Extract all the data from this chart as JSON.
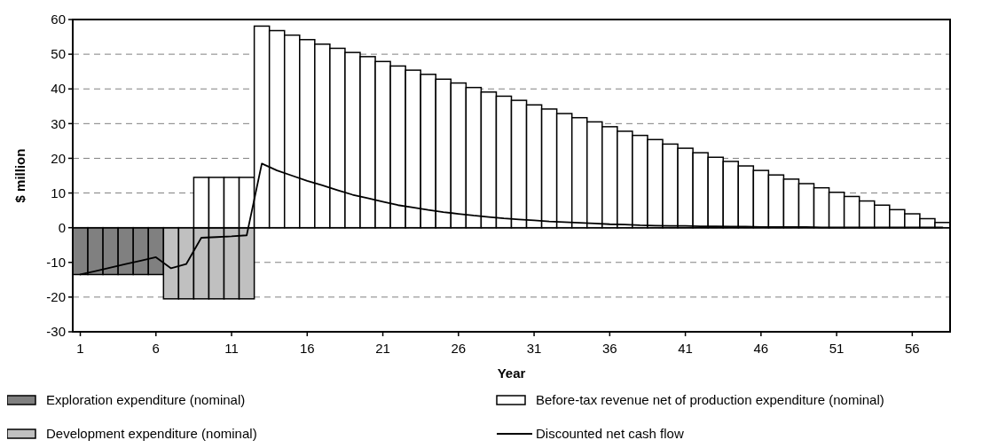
{
  "chart_data": {
    "type": "bar",
    "xlabel": "Year",
    "ylabel": "$ million",
    "ylim": [
      -30,
      60
    ],
    "yticks": [
      -30,
      -20,
      -10,
      0,
      10,
      20,
      30,
      40,
      50,
      60
    ],
    "grid": "y",
    "legend": "bottom",
    "x": [
      1,
      2,
      3,
      4,
      5,
      6,
      7,
      8,
      9,
      10,
      11,
      12,
      13,
      14,
      15,
      16,
      17,
      18,
      19,
      20,
      21,
      22,
      23,
      24,
      25,
      26,
      27,
      28,
      29,
      30,
      31,
      32,
      33,
      34,
      35,
      36,
      37,
      38,
      39,
      40,
      41,
      42,
      43,
      44,
      45,
      46,
      47,
      48,
      49,
      50,
      51,
      52,
      53,
      54,
      55,
      56,
      57,
      58
    ],
    "xlim": [
      0.5,
      58.5
    ],
    "xticks": [
      1,
      6,
      11,
      16,
      21,
      26,
      31,
      36,
      41,
      46,
      51,
      56
    ],
    "series": [
      {
        "name": "Exploration expenditure (nominal)",
        "color": "#808080",
        "values": [
          -13.5,
          -13.5,
          -13.5,
          -13.5,
          -13.5,
          -13.5,
          null,
          null,
          null,
          null,
          null,
          null,
          null,
          null,
          null,
          null,
          null,
          null,
          null,
          null,
          null,
          null,
          null,
          null,
          null,
          null,
          null,
          null,
          null,
          null,
          null,
          null,
          null,
          null,
          null,
          null,
          null,
          null,
          null,
          null,
          null,
          null,
          null,
          null,
          null,
          null,
          null,
          null,
          null,
          null,
          null,
          null,
          null,
          null,
          null,
          null,
          null,
          null
        ]
      },
      {
        "name": "Development expenditure (nominal)",
        "color": "#c0c0c0",
        "values": [
          null,
          null,
          null,
          null,
          null,
          null,
          -20.5,
          -20.5,
          -20.5,
          -20.5,
          -20.5,
          -20.5,
          null,
          null,
          null,
          null,
          null,
          null,
          null,
          null,
          null,
          null,
          null,
          null,
          null,
          null,
          null,
          null,
          null,
          null,
          null,
          null,
          null,
          null,
          null,
          null,
          null,
          null,
          null,
          null,
          null,
          null,
          null,
          null,
          null,
          null,
          null,
          null,
          null,
          null,
          null,
          null,
          null,
          null,
          null,
          null,
          null,
          null
        ]
      },
      {
        "name": "Before-tax revenue net of production expenditure (nominal)",
        "color": "#ffffff",
        "values": [
          null,
          null,
          null,
          null,
          null,
          null,
          null,
          null,
          14.5,
          14.5,
          14.5,
          14.5,
          58.1,
          56.8,
          55.5,
          54.2,
          52.9,
          51.7,
          50.5,
          49.3,
          47.9,
          46.6,
          45.4,
          44.2,
          42.8,
          41.7,
          40.4,
          39.1,
          37.9,
          36.7,
          35.4,
          34.2,
          32.9,
          31.7,
          30.5,
          29.1,
          27.8,
          26.6,
          25.4,
          24.1,
          22.9,
          21.6,
          20.3,
          19.1,
          17.8,
          16.5,
          15.2,
          14.0,
          12.7,
          11.5,
          10.2,
          9.0,
          7.7,
          6.5,
          5.2,
          4.0,
          2.6,
          1.5
        ]
      },
      {
        "name": "Discounted net cash flow",
        "type": "line",
        "color": "#000000",
        "values": [
          -13.5,
          -12.5,
          -11.5,
          -10.5,
          -9.5,
          -8.5,
          -11.7,
          -10.5,
          -2.9,
          -2.7,
          -2.5,
          -2.2,
          18.5,
          16.5,
          15.0,
          13.5,
          12.2,
          10.8,
          9.5,
          8.5,
          7.5,
          6.5,
          5.8,
          5.1,
          4.5,
          4.0,
          3.5,
          3.1,
          2.7,
          2.4,
          2.1,
          1.8,
          1.6,
          1.4,
          1.2,
          1.0,
          0.9,
          0.7,
          0.6,
          0.5,
          0.5,
          0.4,
          0.4,
          0.3,
          0.3,
          0.2,
          0.2,
          0.2,
          0.2,
          0.1,
          0.1,
          0.1,
          0.1,
          0.1,
          0.1,
          0.1,
          0.1,
          0.1
        ]
      }
    ]
  }
}
